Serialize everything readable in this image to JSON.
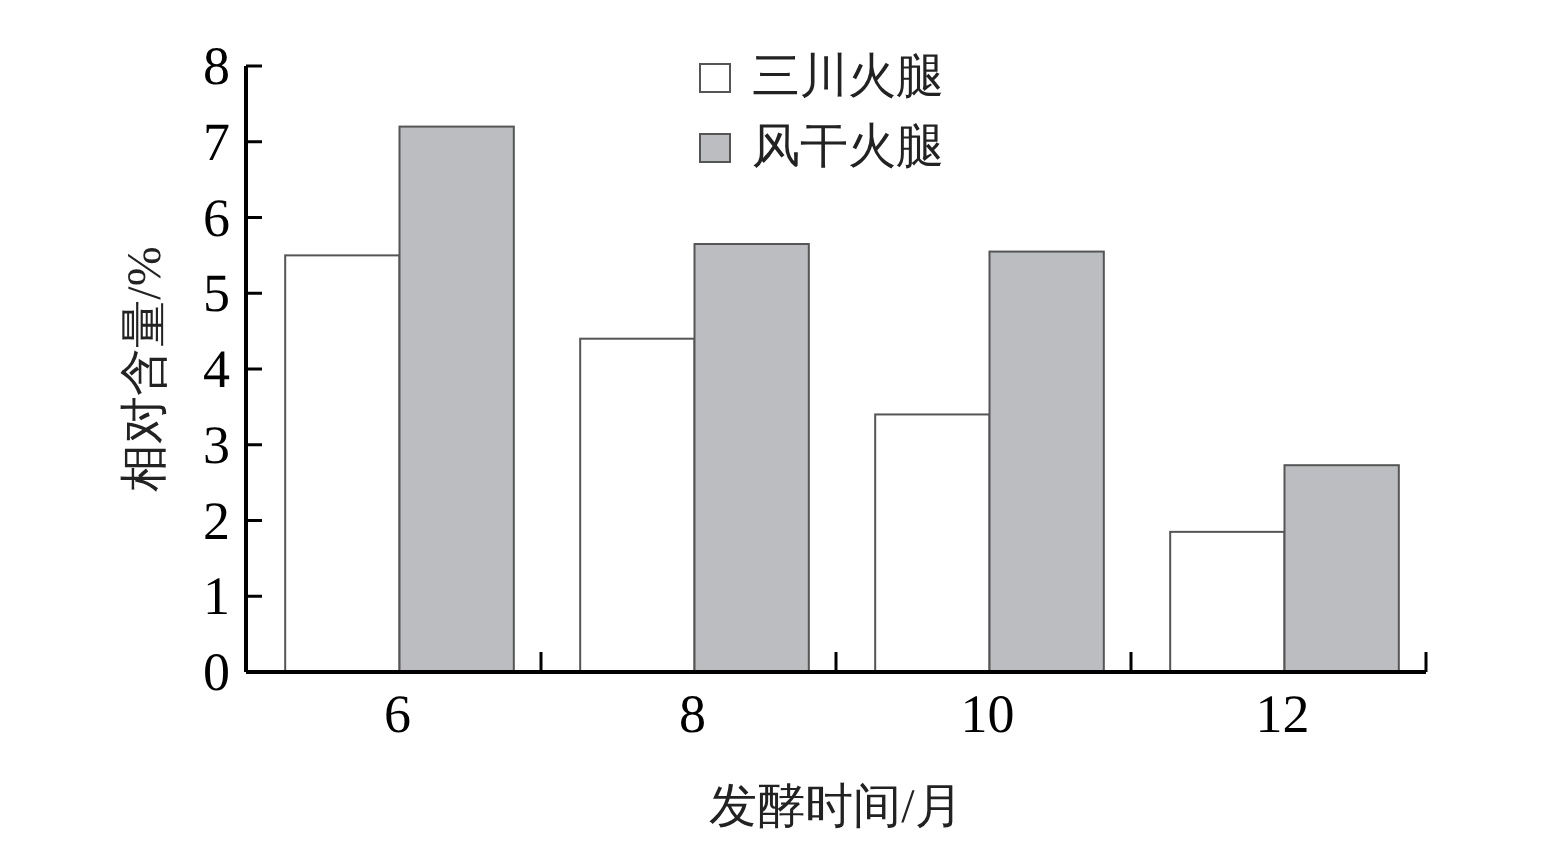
{
  "chart_data": {
    "type": "bar",
    "xlabel": "发酵时间/月",
    "ylabel": "相对含量/%",
    "categories": [
      "6",
      "8",
      "10",
      "12"
    ],
    "series": [
      {
        "name": "三川火腿",
        "color": "#ffffff",
        "values": [
          5.5,
          4.4,
          3.4,
          1.85
        ]
      },
      {
        "name": "风干火腿",
        "color": "#bcbdc0",
        "values": [
          7.2,
          5.65,
          5.55,
          2.73
        ]
      }
    ],
    "ylim": [
      0,
      8
    ],
    "yticks": [
      0,
      1,
      2,
      3,
      4,
      5,
      6,
      7,
      8
    ],
    "grid": false,
    "legend": "top"
  }
}
